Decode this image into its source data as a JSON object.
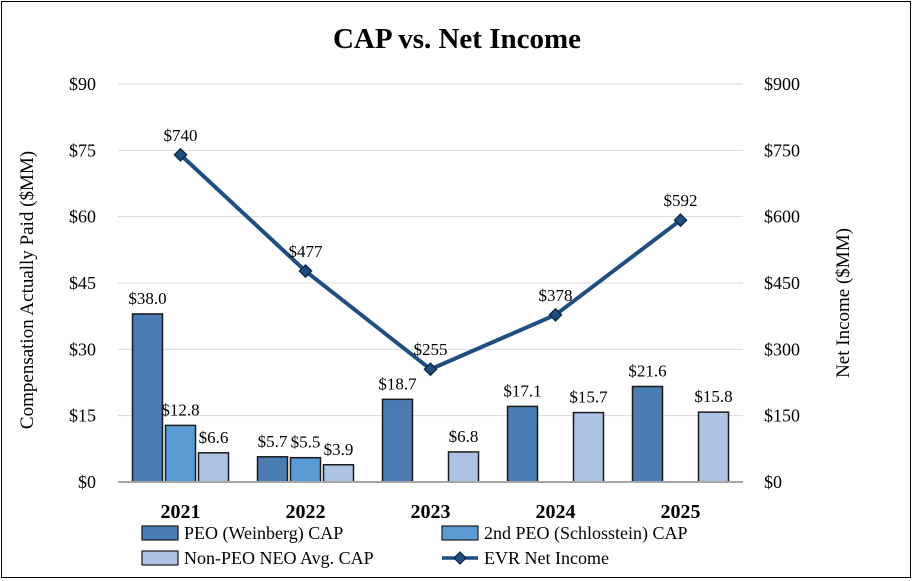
{
  "chart_data": {
    "type": "bar",
    "title": "CAP vs. Net Income",
    "ylabel": "Compensation Actually Paid ($MM)",
    "y2label": "Net Income ($MM)",
    "categories": [
      "2021",
      "2022",
      "2023",
      "2024",
      "2025"
    ],
    "ylim": [
      0,
      90
    ],
    "y2lim": [
      0,
      900
    ],
    "yticks": [
      "$0",
      "$15",
      "$30",
      "$45",
      "$60",
      "$75",
      "$90"
    ],
    "y2ticks": [
      "$0",
      "$150",
      "$300",
      "$450",
      "$600",
      "$750",
      "$900"
    ],
    "series": [
      {
        "name": "PEO (Weinberg) CAP",
        "color": "#4a7bb2",
        "values": [
          38.0,
          5.7,
          18.7,
          17.1,
          21.6
        ],
        "labels": [
          "$38.0",
          "$5.7",
          "$18.7",
          "$17.1",
          "$21.6"
        ]
      },
      {
        "name": "2nd PEO (Schlosstein) CAP",
        "color": "#5b9bd5",
        "values": [
          12.8,
          5.5,
          null,
          null,
          null
        ],
        "labels": [
          "$12.8",
          "$5.5",
          "",
          "",
          ""
        ]
      },
      {
        "name": "Non-PEO NEO Avg. CAP",
        "color": "#aec3e4",
        "values": [
          6.6,
          3.9,
          6.8,
          15.7,
          15.8
        ],
        "labels": [
          "$6.6",
          "$3.9",
          "$6.8",
          "$15.7",
          "$15.8"
        ]
      }
    ],
    "line_series": {
      "name": "EVR Net Income",
      "color": "#1f4e80",
      "axis": "right",
      "values": [
        740,
        477,
        255,
        378,
        592
      ],
      "labels": [
        "$740",
        "$477",
        "$255",
        "$378",
        "$592"
      ]
    },
    "legend": "bottom",
    "grid": false
  }
}
